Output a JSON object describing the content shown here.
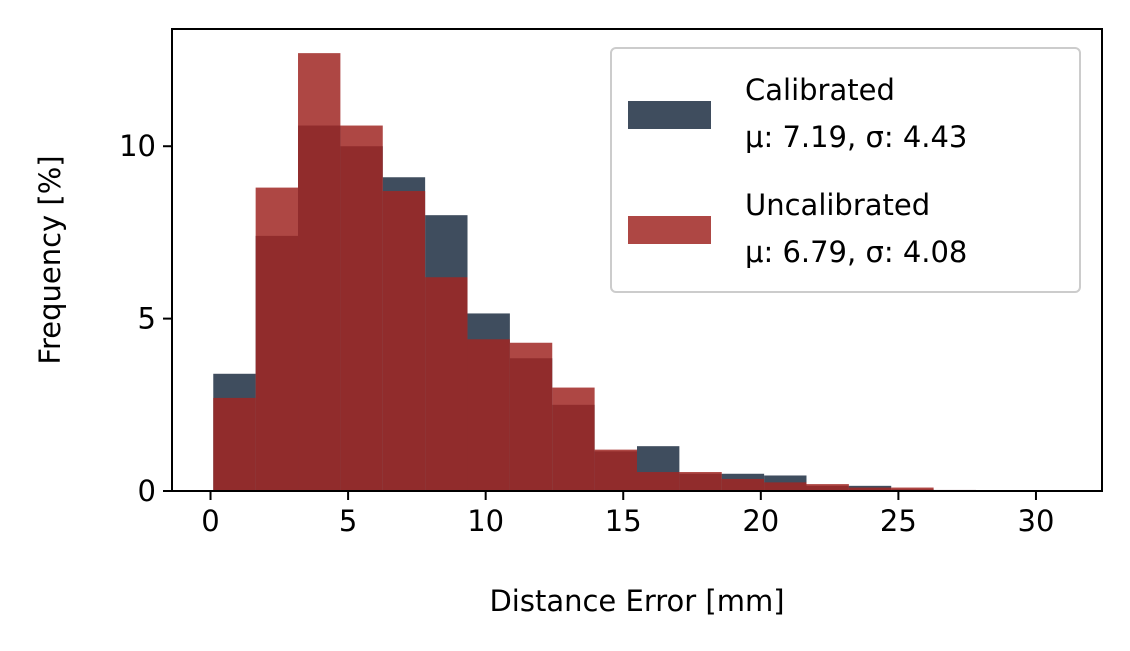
{
  "chart_data": {
    "type": "bar",
    "bin_edges": [
      0.1,
      1.64,
      3.18,
      4.72,
      6.26,
      7.8,
      9.34,
      10.88,
      12.42,
      13.96,
      15.5,
      17.04,
      18.58,
      20.12,
      21.66,
      23.2,
      24.74,
      26.28,
      27.82,
      29.36,
      30.9
    ],
    "series": [
      {
        "name": "Calibrated",
        "stats": "μ: 7.19, σ: 4.43",
        "color": "#2a3a4c",
        "alpha": 0.9,
        "values": [
          3.4,
          7.4,
          10.6,
          10.0,
          9.1,
          8.0,
          5.15,
          3.85,
          2.5,
          1.15,
          1.3,
          0.5,
          0.5,
          0.45,
          0.15,
          0.15,
          0.05,
          0.03,
          0.02,
          0.02
        ]
      },
      {
        "name": "Uncalibrated",
        "stats": "μ: 6.79, σ: 4.08",
        "color": "#a02723",
        "alpha": 0.85,
        "values": [
          2.7,
          8.8,
          12.7,
          10.6,
          8.7,
          6.2,
          4.4,
          4.3,
          3.0,
          1.2,
          0.55,
          0.55,
          0.35,
          0.25,
          0.2,
          0.1,
          0.1,
          0.03,
          0.02,
          0.02
        ]
      }
    ],
    "xlabel": "Distance Error [mm]",
    "ylabel": "Frequency [%]",
    "xlim": [
      -1.4,
      32.4
    ],
    "ylim": [
      0,
      13.4
    ],
    "xticks": [
      0,
      5,
      10,
      15,
      20,
      25,
      30
    ],
    "yticks": [
      0,
      5,
      10
    ],
    "legend_position": "top-right",
    "grid": false
  }
}
